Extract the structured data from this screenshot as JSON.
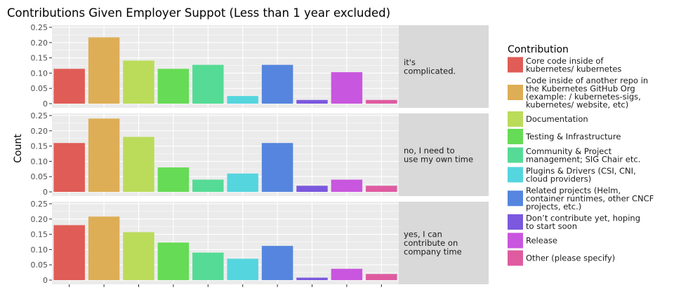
{
  "chart_data": {
    "type": "bar",
    "title": "Contributions Given Employer Suppot (Less than 1 year excluded)",
    "xlabel": "",
    "ylabel": "Count",
    "ylim": [
      0,
      0.25
    ],
    "yticks": [
      "0",
      "0.05",
      "0.10",
      "0.15",
      "0.20",
      "0.25"
    ],
    "legend_title": "Contribution",
    "legend_position": "right",
    "grid": true,
    "categories": [
      {
        "lines": [
          "Core code inside of",
          "kubernetes/  kubernetes"
        ],
        "color": "#E05C56"
      },
      {
        "lines": [
          "Code inside of another repo in",
          "the Kubernetes GitHub Org",
          "(example: /  kubernetes-sigs,",
          "kubernetes/  website, etc)"
        ],
        "color": "#DDAE55"
      },
      {
        "lines": [
          "Documentation"
        ],
        "color": "#BBDB5A"
      },
      {
        "lines": [
          "Testing & Infrastructure"
        ],
        "color": "#66DB55"
      },
      {
        "lines": [
          "Community & Project",
          "management; SIG Chair etc."
        ],
        "color": "#55DB95"
      },
      {
        "lines": [
          "Plugins & Drivers (CSI, CNI,",
          "cloud providers)"
        ],
        "color": "#55D5DE"
      },
      {
        "lines": [
          "Related projects (Helm,",
          "container runtimes, other CNCF",
          "projects, etc.)"
        ],
        "color": "#5585DE"
      },
      {
        "lines": [
          "Don’t contribute yet, hoping",
          "to start soon"
        ],
        "color": "#7B58DE"
      },
      {
        "lines": [
          "Release"
        ],
        "color": "#C956DE"
      },
      {
        "lines": [
          "Other (please specify)"
        ],
        "color": "#DE5BA0"
      }
    ],
    "facets": [
      {
        "label_lines": [
          "it's",
          "complicated."
        ],
        "values": [
          0.114,
          0.217,
          0.141,
          0.114,
          0.127,
          0.025,
          0.127,
          0.012,
          0.103,
          0.012
        ]
      },
      {
        "label_lines": [
          "no, I need to",
          "use my own time"
        ],
        "values": [
          0.16,
          0.24,
          0.18,
          0.08,
          0.04,
          0.06,
          0.16,
          0.02,
          0.04,
          0.02
        ]
      },
      {
        "label_lines": [
          "yes, I can",
          "contribute on",
          "company time"
        ],
        "values": [
          0.18,
          0.208,
          0.157,
          0.123,
          0.09,
          0.07,
          0.112,
          0.008,
          0.037,
          0.02
        ]
      }
    ]
  }
}
